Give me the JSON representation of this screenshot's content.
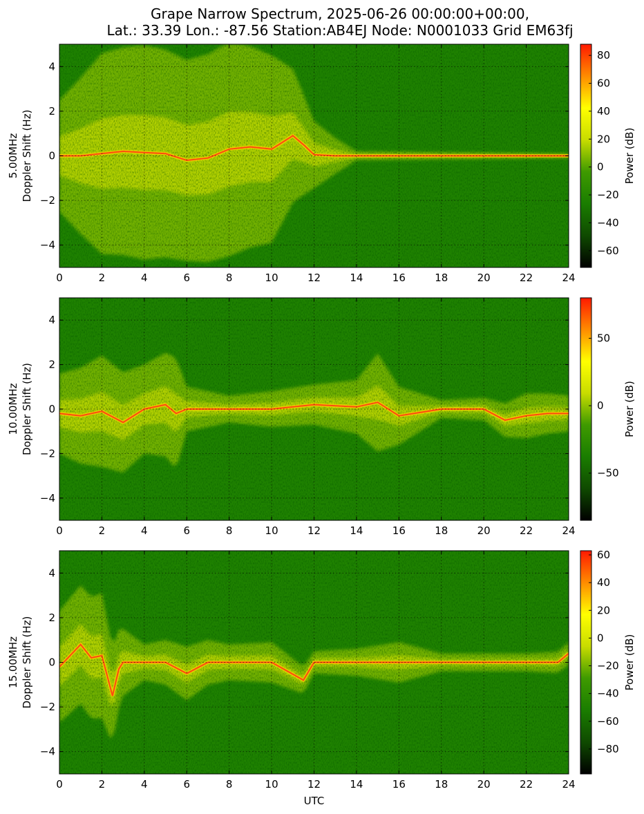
{
  "title_line1": "Grape Narrow Spectrum, 2025-06-26 00:00:00+00:00,",
  "title_line2": "Lat.: 33.39 Lon.: -87.56 Station:AB4EJ Node: N0001033 Grid EM63fj",
  "colors": {
    "colormap": [
      "#000000",
      "#0f4a00",
      "#1a7d00",
      "#3f9a00",
      "#c8dc00",
      "#ffff00",
      "#ff8c00",
      "#ff1a00"
    ],
    "signal_core": "#ff4a10",
    "grid": "#000000"
  },
  "chart_data": [
    {
      "type": "heatmap",
      "ylabel_line1": "5.00MHz",
      "ylabel_line2": "Doppler Shift (Hz)",
      "xlabel": "",
      "xlim": [
        0,
        24
      ],
      "ylim": [
        -5,
        5
      ],
      "x_ticks": [
        0,
        2,
        4,
        6,
        8,
        10,
        12,
        14,
        16,
        18,
        20,
        22,
        24
      ],
      "y_ticks": [
        4,
        2,
        0,
        -2,
        -4
      ],
      "colorbar": {
        "label": "Power (dB)",
        "range": [
          -72,
          88
        ],
        "ticks": [
          80,
          60,
          40,
          20,
          0,
          -20,
          -40,
          -60
        ]
      },
      "signal_trace": {
        "utc": [
          0,
          1,
          2,
          3,
          4,
          5,
          6,
          7,
          8,
          9,
          10,
          11,
          11.5,
          12,
          13,
          14,
          16,
          18,
          20,
          22,
          24
        ],
        "doppler_hz": [
          0,
          0,
          0.1,
          0.2,
          0.15,
          0.1,
          -0.2,
          -0.1,
          0.3,
          0.4,
          0.3,
          0.9,
          0.5,
          0.05,
          0,
          0,
          0,
          0,
          0,
          0,
          0
        ]
      },
      "spread": {
        "utc": [
          0,
          2,
          4,
          6,
          8,
          10,
          11,
          12,
          13,
          14,
          24
        ],
        "width_hz": [
          2.5,
          4.5,
          4.8,
          4.5,
          4.8,
          4.2,
          3.0,
          1.5,
          0.8,
          0.2,
          0.1
        ]
      }
    },
    {
      "type": "heatmap",
      "ylabel_line1": "10.00MHz",
      "ylabel_line2": "Doppler Shift (Hz)",
      "xlabel": "",
      "xlim": [
        0,
        24
      ],
      "ylim": [
        -5,
        5
      ],
      "x_ticks": [
        0,
        2,
        4,
        6,
        8,
        10,
        12,
        14,
        16,
        18,
        20,
        22,
        24
      ],
      "y_ticks": [
        4,
        2,
        0,
        -2,
        -4
      ],
      "colorbar": {
        "label": "Power (dB)",
        "range": [
          -85,
          80
        ],
        "ticks": [
          50,
          0,
          -50
        ]
      },
      "signal_trace": {
        "utc": [
          0,
          1,
          2,
          3,
          4,
          5,
          5.5,
          6,
          8,
          10,
          12,
          14,
          15,
          16,
          18,
          20,
          21,
          22,
          23,
          24
        ],
        "doppler_hz": [
          -0.2,
          -0.3,
          -0.1,
          -0.6,
          0.0,
          0.2,
          -0.2,
          0,
          0,
          0,
          0.2,
          0.1,
          0.3,
          -0.3,
          0,
          0,
          -0.5,
          -0.3,
          -0.2,
          -0.2
        ]
      },
      "spread": {
        "utc": [
          0,
          2,
          4,
          5.5,
          6,
          8,
          10,
          12,
          14,
          15,
          16,
          18,
          20,
          22,
          24
        ],
        "width_hz": [
          1.8,
          2.5,
          2.0,
          2.5,
          1.0,
          0.6,
          0.8,
          0.9,
          1.2,
          2.2,
          1.3,
          0.4,
          0.5,
          1.0,
          0.8
        ]
      }
    },
    {
      "type": "heatmap",
      "ylabel_line1": "15.00MHz",
      "ylabel_line2": "Doppler Shift (Hz)",
      "xlabel": "UTC",
      "xlim": [
        0,
        24
      ],
      "ylim": [
        -5,
        5
      ],
      "x_ticks": [
        0,
        2,
        4,
        6,
        8,
        10,
        12,
        14,
        16,
        18,
        20,
        22,
        24
      ],
      "y_ticks": [
        4,
        2,
        0,
        -2,
        -4
      ],
      "colorbar": {
        "label": "Power (dB)",
        "range": [
          -98,
          63
        ],
        "ticks": [
          60,
          40,
          20,
          0,
          -20,
          -40,
          -60,
          -80
        ]
      },
      "signal_trace": {
        "utc": [
          0,
          0.5,
          1,
          1.5,
          2,
          2.5,
          2.8,
          3,
          4,
          5,
          6,
          7,
          8,
          10,
          11.5,
          12,
          14,
          16,
          18,
          20,
          22,
          23.5,
          24
        ],
        "doppler_hz": [
          -0.2,
          0.3,
          0.8,
          0.2,
          0.3,
          -1.5,
          -0.3,
          0,
          0,
          0,
          -0.5,
          0,
          0,
          0,
          -0.8,
          0,
          0,
          0,
          0,
          0,
          0,
          0,
          0.4
        ]
      },
      "spread": {
        "utc": [
          0,
          2,
          3,
          4,
          6,
          8,
          10,
          12,
          14,
          16,
          18,
          20,
          22,
          24
        ],
        "width_hz": [
          2.5,
          2.8,
          1.5,
          0.8,
          1.2,
          0.8,
          0.9,
          0.5,
          0.6,
          0.9,
          0.4,
          0.4,
          0.4,
          0.5
        ]
      }
    }
  ]
}
